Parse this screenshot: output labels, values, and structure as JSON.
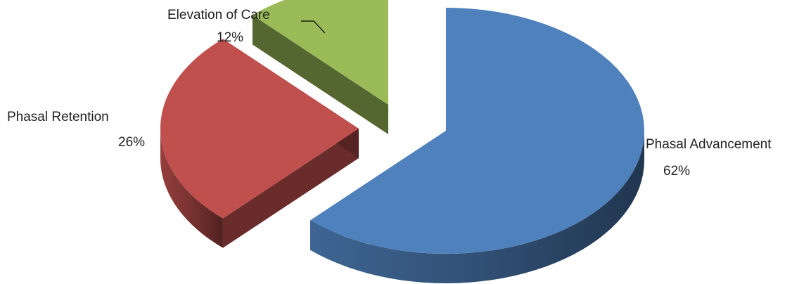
{
  "chart_data": {
    "type": "pie",
    "title": "",
    "style": "3d-exploded",
    "start_angle_deg": 0,
    "direction": "clockwise",
    "slices": [
      {
        "label": "Phasal Advancement",
        "percent_label": "62%",
        "value": 62,
        "color": "#4F81BD"
      },
      {
        "label": "Phasal Retention",
        "percent_label": "26%",
        "value": 26,
        "color": "#C0504D"
      },
      {
        "label": "Elevation of Care",
        "percent_label": "12%",
        "value": 12,
        "color": "#9BBB59"
      }
    ],
    "legend": "none"
  }
}
